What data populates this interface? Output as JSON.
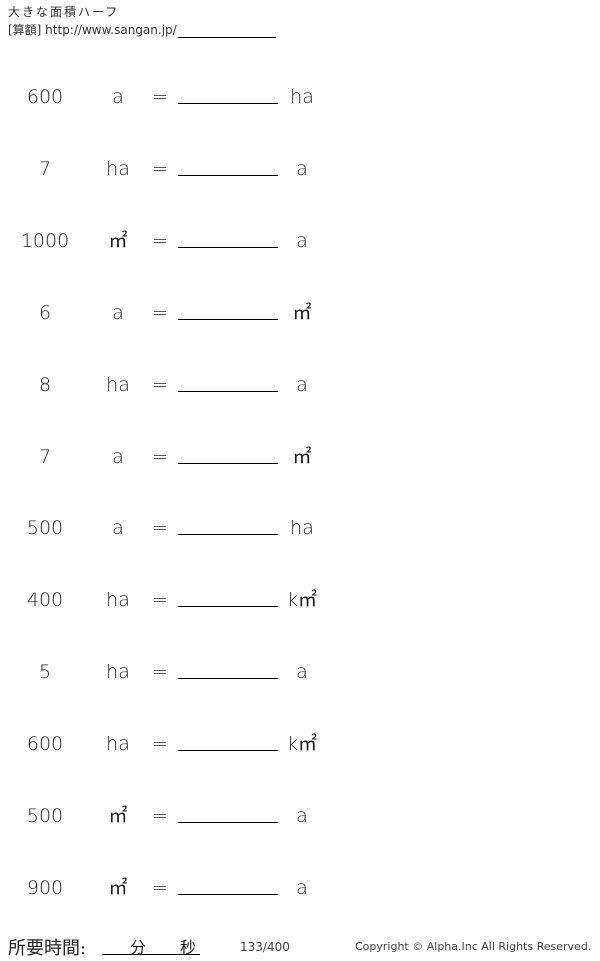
{
  "header": {
    "title": "大きな面積ハーフ",
    "site": "[算額] http://www.sangan.jp/"
  },
  "problems": [
    {
      "value": "600",
      "from": "a",
      "eq": "=",
      "to": "ha"
    },
    {
      "value": "7",
      "from": "ha",
      "eq": "=",
      "to": "a"
    },
    {
      "value": "1000",
      "from": "㎡",
      "eq": "=",
      "to": "a"
    },
    {
      "value": "6",
      "from": "a",
      "eq": "=",
      "to": "㎡"
    },
    {
      "value": "8",
      "from": "ha",
      "eq": "=",
      "to": "a"
    },
    {
      "value": "7",
      "from": "a",
      "eq": "=",
      "to": "㎡"
    },
    {
      "value": "500",
      "from": "a",
      "eq": "=",
      "to": "ha"
    },
    {
      "value": "400",
      "from": "ha",
      "eq": "=",
      "to": "k㎡"
    },
    {
      "value": "5",
      "from": "ha",
      "eq": "=",
      "to": "a"
    },
    {
      "value": "600",
      "from": "ha",
      "eq": "=",
      "to": "k㎡"
    },
    {
      "value": "500",
      "from": "㎡",
      "eq": "=",
      "to": "a"
    },
    {
      "value": "900",
      "from": "㎡",
      "eq": "=",
      "to": "a"
    }
  ],
  "footer": {
    "time_label": "所要時間:",
    "minutes": "分",
    "seconds": "秒",
    "page": "133/400",
    "copyright": "Copyright © Alpha.Inc All Rights Reserved."
  }
}
